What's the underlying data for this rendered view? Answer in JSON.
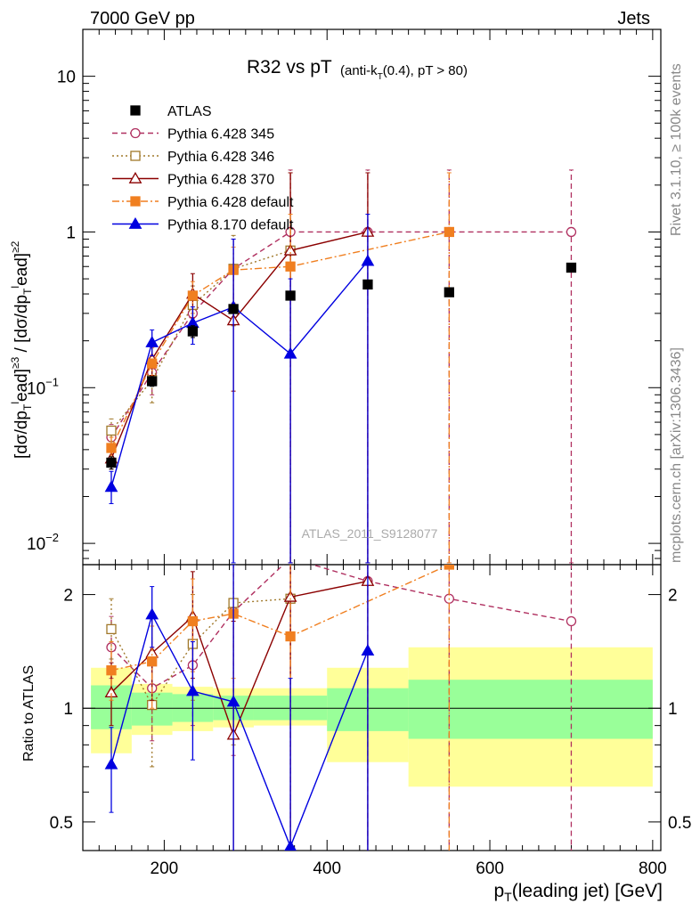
{
  "header": {
    "left": "7000 GeV pp",
    "right": "Jets"
  },
  "side_labels": {
    "rivet": "Rivet 3.1.10, ≥ 100k events",
    "mcplots": "mcplots.cern.ch [arXiv:1306.3436]"
  },
  "watermark": "ATLAS_2011_S9128077",
  "chart_data": [
    {
      "type": "scatter",
      "title_main": "R32 vs pT",
      "title_sub": "(anti-k_T(0.4), pT > 80)",
      "ylabel": "[dσ/dp_T^lead]^{≥3} / [dσ/dp_T^lead]^{≥2}",
      "yscale": "log",
      "ylim": [
        0.0073,
        20
      ],
      "xlim": [
        100,
        810
      ],
      "ytick_labels": [
        "10^-2",
        "10^-1",
        "1",
        "10"
      ],
      "legend_position": "top-left",
      "series": [
        {
          "name": "ATLAS",
          "color": "#000000",
          "marker": "filled-square",
          "line": "none",
          "x": [
            135,
            185,
            235,
            285,
            355,
            450,
            550,
            700
          ],
          "y": [
            0.033,
            0.11,
            0.23,
            0.32,
            0.39,
            0.46,
            0.41,
            0.59
          ],
          "yerr_low": [
            0.03,
            0.102,
            0.21,
            0.3,
            0.37,
            0.43,
            0.39,
            0.56
          ],
          "yerr_high": [
            0.036,
            0.118,
            0.25,
            0.34,
            0.41,
            0.49,
            0.43,
            0.62
          ]
        },
        {
          "name": "Pythia 6.428 345",
          "color": "#b03060",
          "marker": "open-circle",
          "line": "dashed",
          "x": [
            135,
            185,
            235,
            285,
            355,
            450,
            550,
            700
          ],
          "y": [
            0.048,
            0.125,
            0.3,
            0.58,
            1.0,
            1.0,
            1.0,
            1.0
          ],
          "yerr_low": [
            0.04,
            0.09,
            0.21,
            0.25,
            0.0075,
            0.0075,
            0.0075,
            0.0075
          ],
          "yerr_high": [
            0.058,
            0.16,
            0.4,
            0.9,
            2.5,
            2.5,
            2.5,
            2.5
          ]
        },
        {
          "name": "Pythia 6.428 346",
          "color": "#a0782a",
          "marker": "open-square",
          "line": "dotted",
          "x": [
            135,
            185,
            235,
            285,
            355
          ],
          "y": [
            0.053,
            0.112,
            0.34,
            0.58,
            0.76
          ],
          "yerr_low": [
            0.045,
            0.08,
            0.22,
            0.25,
            0.0075
          ],
          "yerr_high": [
            0.063,
            0.15,
            0.45,
            0.95,
            2.4
          ]
        },
        {
          "name": "Pythia 6.428 370",
          "color": "#8b0000",
          "marker": "open-triangle",
          "line": "solid",
          "x": [
            135,
            185,
            235,
            285,
            355,
            450
          ],
          "y": [
            0.035,
            0.152,
            0.4,
            0.27,
            0.76,
            1.0
          ],
          "yerr_low": [
            0.03,
            0.12,
            0.28,
            0.095,
            0.0075,
            0.0075
          ],
          "yerr_high": [
            0.04,
            0.19,
            0.54,
            0.55,
            2.4,
            2.4
          ]
        },
        {
          "name": "Pythia 6.428 default",
          "color": "#f07f20",
          "marker": "filled-square",
          "line": "dashdot",
          "x": [
            135,
            185,
            235,
            285,
            355,
            550
          ],
          "y": [
            0.041,
            0.143,
            0.39,
            0.57,
            0.6,
            1.0
          ],
          "yerr_low": [
            0.035,
            0.11,
            0.3,
            0.35,
            0.0075,
            0.0075
          ],
          "yerr_high": [
            0.048,
            0.18,
            0.48,
            0.8,
            1.3,
            2.4
          ]
        },
        {
          "name": "Pythia 8.170 default",
          "color": "#0000e0",
          "marker": "filled-triangle",
          "line": "solid",
          "x": [
            135,
            185,
            235,
            285,
            355,
            450
          ],
          "y": [
            0.023,
            0.195,
            0.26,
            0.33,
            0.165,
            0.65
          ],
          "yerr_low": [
            0.018,
            0.16,
            0.19,
            0.0075,
            0.0075,
            0.0075
          ],
          "yerr_high": [
            0.029,
            0.235,
            0.33,
            0.9,
            0.5,
            1.3
          ]
        }
      ]
    },
    {
      "type": "scatter",
      "ylabel": "Ratio to ATLAS",
      "xlabel": "p_T(leading jet) [GeV]",
      "yscale": "log",
      "ylim": [
        0.42,
        2.4
      ],
      "xlim": [
        100,
        810
      ],
      "xtick_labels": [
        "200",
        "400",
        "600",
        "800"
      ],
      "ytick_labels": [
        "0.5",
        "1",
        "2"
      ],
      "bands": {
        "edges": [
          110,
          160,
          210,
          260,
          310,
          400,
          500,
          800
        ],
        "stat_low": [
          0.88,
          0.9,
          0.92,
          0.93,
          0.93,
          0.87,
          0.83,
          0.83
        ],
        "stat_high": [
          1.15,
          1.1,
          1.09,
          1.08,
          1.08,
          1.13,
          1.19,
          1.19
        ],
        "tot_low": [
          0.76,
          0.85,
          0.87,
          0.89,
          0.9,
          0.72,
          0.62,
          0.61
        ],
        "tot_high": [
          1.28,
          1.16,
          1.14,
          1.13,
          1.13,
          1.28,
          1.45,
          1.45
        ]
      },
      "series": [
        {
          "name": "Pythia 6.428 345",
          "color": "#b03060",
          "x": [
            135,
            185,
            235,
            285,
            355,
            450,
            550,
            700
          ],
          "y": [
            1.45,
            1.13,
            1.3,
            1.8,
            2.5,
            2.17,
            1.95,
            1.7
          ],
          "yerr_low": [
            1.2,
            0.82,
            0.9,
            0.75,
            0.35,
            0.35,
            0.35,
            0.35
          ],
          "yerr_high": [
            1.75,
            1.45,
            1.75,
            2.5,
            2.5,
            2.5,
            2.5,
            2.5
          ]
        },
        {
          "name": "Pythia 6.428 346",
          "color": "#a0782a",
          "x": [
            135,
            185,
            235,
            285,
            355
          ],
          "y": [
            1.62,
            1.02,
            1.48,
            1.9,
            1.95
          ],
          "yerr_low": [
            1.35,
            0.7,
            1.05,
            0.8,
            0.35
          ],
          "yerr_high": [
            1.95,
            1.4,
            2.0,
            2.5,
            2.5
          ]
        },
        {
          "name": "Pythia 6.428 370",
          "color": "#8b0000",
          "x": [
            135,
            185,
            235,
            285,
            355,
            450
          ],
          "y": [
            1.1,
            1.4,
            1.75,
            0.85,
            1.97,
            2.17
          ],
          "yerr_low": [
            0.9,
            1.05,
            1.2,
            0.3,
            0.35,
            0.35
          ],
          "yerr_high": [
            1.32,
            1.75,
            2.3,
            1.7,
            2.5,
            2.5
          ]
        },
        {
          "name": "Pythia 6.428 default",
          "color": "#f07f20",
          "x": [
            135,
            185,
            235,
            285,
            355,
            550
          ],
          "y": [
            1.26,
            1.33,
            1.7,
            1.78,
            1.55,
            2.4
          ],
          "yerr_low": [
            1.05,
            1.0,
            1.25,
            1.2,
            0.35,
            0.35
          ],
          "yerr_high": [
            1.5,
            1.65,
            2.2,
            2.4,
            2.5,
            2.5
          ]
        },
        {
          "name": "Pythia 8.170 default",
          "color": "#0000e0",
          "x": [
            135,
            185,
            235,
            285,
            355,
            450
          ],
          "y": [
            0.71,
            1.77,
            1.11,
            1.04,
            0.43,
            1.42
          ],
          "yerr_low": [
            0.53,
            1.45,
            0.73,
            0.35,
            0.35,
            0.35
          ],
          "yerr_high": [
            0.89,
            2.1,
            1.5,
            2.4,
            1.2,
            2.5
          ]
        }
      ]
    }
  ]
}
